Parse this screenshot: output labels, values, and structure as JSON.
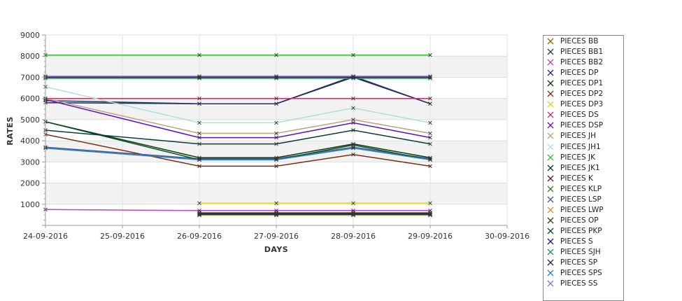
{
  "chart_data": {
    "type": "line",
    "title": "",
    "xlabel": "DAYS",
    "ylabel": "RATES",
    "x_ticks": [
      "24-09-2016",
      "25-09-2016",
      "26-09-2016",
      "27-09-2016",
      "28-09-2016",
      "29-09-2016",
      "30-09-2016"
    ],
    "y_ticks": [
      "1000",
      "2000",
      "3000",
      "4000",
      "5000",
      "6000",
      "7000",
      "8000",
      "9000"
    ],
    "ylim": [
      0,
      9000
    ],
    "xlim": [
      "24-09-2016",
      "30-09-2016"
    ],
    "grid": true,
    "legend_position": "right",
    "series": [
      {
        "name": "PIECES BB",
        "color": "#8a6d00",
        "points": [
          [
            "26-09-2016",
            500
          ],
          [
            "27-09-2016",
            500
          ],
          [
            "28-09-2016",
            500
          ],
          [
            "29-09-2016",
            500
          ]
        ]
      },
      {
        "name": "PIECES BB1",
        "color": "#16425b",
        "points": [
          [
            "24-09-2016",
            5900
          ],
          [
            "26-09-2016",
            5750
          ],
          [
            "27-09-2016",
            5750
          ],
          [
            "28-09-2016",
            7050
          ],
          [
            "29-09-2016",
            5750
          ]
        ]
      },
      {
        "name": "PIECES BB2",
        "color": "#c044c0",
        "points": [
          [
            "24-09-2016",
            750
          ],
          [
            "26-09-2016",
            700
          ],
          [
            "27-09-2016",
            700
          ],
          [
            "28-09-2016",
            700
          ],
          [
            "29-09-2016",
            700
          ]
        ]
      },
      {
        "name": "PIECES DP",
        "color": "#2a2a6a",
        "points": [
          [
            "24-09-2016",
            5800
          ],
          [
            "26-09-2016",
            5750
          ],
          [
            "27-09-2016",
            5750
          ],
          [
            "28-09-2016",
            7000
          ],
          [
            "29-09-2016",
            5750
          ]
        ]
      },
      {
        "name": "PIECES DP1",
        "color": "#0b3d0b",
        "points": [
          [
            "24-09-2016",
            4900
          ],
          [
            "26-09-2016",
            3200
          ],
          [
            "27-09-2016",
            3200
          ],
          [
            "28-09-2016",
            3850
          ],
          [
            "29-09-2016",
            3200
          ]
        ]
      },
      {
        "name": "PIECES DP2",
        "color": "#7a2e10",
        "points": [
          [
            "24-09-2016",
            4300
          ],
          [
            "26-09-2016",
            2800
          ],
          [
            "27-09-2016",
            2800
          ],
          [
            "28-09-2016",
            3350
          ],
          [
            "29-09-2016",
            2800
          ]
        ]
      },
      {
        "name": "PIECES DP3",
        "color": "#d8d820",
        "points": [
          [
            "26-09-2016",
            1050
          ],
          [
            "27-09-2016",
            1050
          ],
          [
            "28-09-2016",
            1050
          ],
          [
            "29-09-2016",
            1050
          ]
        ]
      },
      {
        "name": "PIECES DS",
        "color": "#c0306a",
        "points": [
          [
            "24-09-2016",
            6000
          ],
          [
            "26-09-2016",
            6000
          ],
          [
            "27-09-2016",
            6000
          ],
          [
            "28-09-2016",
            6000
          ],
          [
            "29-09-2016",
            6000
          ]
        ]
      },
      {
        "name": "PIECES DSP",
        "color": "#5a10c8",
        "points": [
          [
            "24-09-2016",
            5950
          ],
          [
            "26-09-2016",
            4150
          ],
          [
            "27-09-2016",
            4150
          ],
          [
            "28-09-2016",
            4850
          ],
          [
            "29-09-2016",
            4150
          ]
        ]
      },
      {
        "name": "PIECES JH",
        "color": "#c0a080",
        "points": [
          [
            "24-09-2016",
            6000
          ],
          [
            "26-09-2016",
            4350
          ],
          [
            "27-09-2016",
            4350
          ],
          [
            "28-09-2016",
            5000
          ],
          [
            "29-09-2016",
            4350
          ]
        ]
      },
      {
        "name": "PIECES JH1",
        "color": "#b0e0d0",
        "points": [
          [
            "24-09-2016",
            6550
          ],
          [
            "26-09-2016",
            4850
          ],
          [
            "27-09-2016",
            4850
          ],
          [
            "28-09-2016",
            5550
          ],
          [
            "29-09-2016",
            4850
          ]
        ]
      },
      {
        "name": "PIECES JK",
        "color": "#33c133",
        "points": [
          [
            "24-09-2016",
            8050
          ],
          [
            "26-09-2016",
            8050
          ],
          [
            "27-09-2016",
            8050
          ],
          [
            "28-09-2016",
            8050
          ],
          [
            "29-09-2016",
            8050
          ]
        ]
      },
      {
        "name": "PIECES JK1",
        "color": "#0a3a3a",
        "points": [
          [
            "24-09-2016",
            4500
          ],
          [
            "26-09-2016",
            3850
          ],
          [
            "27-09-2016",
            3850
          ],
          [
            "28-09-2016",
            4500
          ],
          [
            "29-09-2016",
            3850
          ]
        ]
      },
      {
        "name": "PIECES K",
        "color": "#5a1a1a",
        "points": [
          [
            "26-09-2016",
            550
          ],
          [
            "27-09-2016",
            550
          ],
          [
            "28-09-2016",
            550
          ],
          [
            "29-09-2016",
            550
          ]
        ]
      },
      {
        "name": "PIECES KLP",
        "color": "#4a7a20",
        "points": [
          [
            "26-09-2016",
            600
          ],
          [
            "27-09-2016",
            600
          ],
          [
            "28-09-2016",
            600
          ],
          [
            "29-09-2016",
            600
          ]
        ]
      },
      {
        "name": "PIECES LSP",
        "color": "#4a5a8a",
        "points": [
          [
            "24-09-2016",
            3700
          ],
          [
            "26-09-2016",
            3150
          ],
          [
            "27-09-2016",
            3150
          ],
          [
            "28-09-2016",
            3700
          ],
          [
            "29-09-2016",
            3150
          ]
        ]
      },
      {
        "name": "PIECES LWP",
        "color": "#e08a40",
        "points": [
          [
            "26-09-2016",
            480
          ],
          [
            "27-09-2016",
            480
          ],
          [
            "28-09-2016",
            480
          ],
          [
            "29-09-2016",
            480
          ]
        ]
      },
      {
        "name": "PIECES OP",
        "color": "#3a3a10",
        "points": [
          [
            "26-09-2016",
            520
          ],
          [
            "27-09-2016",
            520
          ],
          [
            "28-09-2016",
            520
          ],
          [
            "29-09-2016",
            520
          ]
        ]
      },
      {
        "name": "PIECES PKP",
        "color": "#0a4a2a",
        "points": [
          [
            "24-09-2016",
            4900
          ],
          [
            "26-09-2016",
            3100
          ],
          [
            "27-09-2016",
            3100
          ],
          [
            "28-09-2016",
            3800
          ],
          [
            "29-09-2016",
            3100
          ]
        ]
      },
      {
        "name": "PIECES S",
        "color": "#1a1a8a",
        "points": [
          [
            "26-09-2016",
            560
          ],
          [
            "27-09-2016",
            560
          ],
          [
            "28-09-2016",
            560
          ],
          [
            "29-09-2016",
            560
          ]
        ]
      },
      {
        "name": "PIECES SJH",
        "color": "#1a9a5a",
        "points": [
          [
            "24-09-2016",
            6950
          ],
          [
            "26-09-2016",
            6950
          ],
          [
            "27-09-2016",
            6950
          ],
          [
            "28-09-2016",
            6950
          ],
          [
            "29-09-2016",
            6950
          ]
        ]
      },
      {
        "name": "PIECES SP",
        "color": "#222244",
        "points": [
          [
            "24-09-2016",
            7000
          ],
          [
            "26-09-2016",
            7000
          ],
          [
            "27-09-2016",
            7000
          ],
          [
            "28-09-2016",
            7000
          ],
          [
            "29-09-2016",
            7000
          ]
        ]
      },
      {
        "name": "PIECES SPS",
        "color": "#2a80c0",
        "points": [
          [
            "24-09-2016",
            3650
          ],
          [
            "26-09-2016",
            3100
          ],
          [
            "27-09-2016",
            3100
          ],
          [
            "28-09-2016",
            3650
          ],
          [
            "29-09-2016",
            3100
          ]
        ]
      },
      {
        "name": "PIECES SS",
        "color": "#8a70c0",
        "points": [
          [
            "24-09-2016",
            7050
          ],
          [
            "26-09-2016",
            7050
          ],
          [
            "27-09-2016",
            7050
          ],
          [
            "28-09-2016",
            7050
          ],
          [
            "29-09-2016",
            7050
          ]
        ]
      }
    ]
  }
}
